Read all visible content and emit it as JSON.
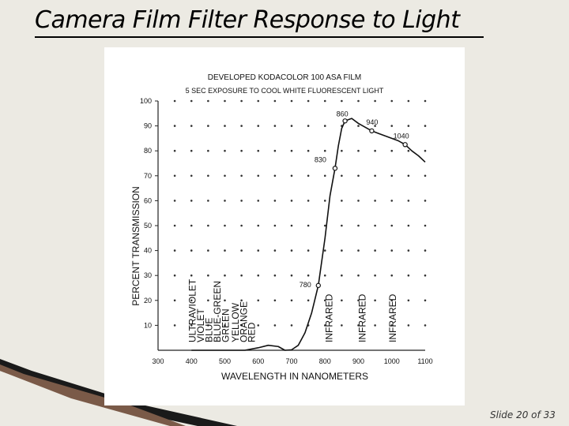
{
  "slide": {
    "title": "Camera Film Filter Response to Light",
    "footer": "Slide 20 of 33"
  },
  "chart_data": {
    "type": "line",
    "title": "DEVELOPED KODACOLOR 100 ASA FILM",
    "subtitle": "5 SEC EXPOSURE TO COOL WHITE FLUORESCENT LIGHT",
    "xlabel": "WAVELENGTH IN NANOMETERS",
    "ylabel": "PERCENT TRANSMISSION",
    "xlim": [
      300,
      1100
    ],
    "ylim": [
      0,
      100
    ],
    "x_ticks": [
      300,
      400,
      500,
      600,
      700,
      800,
      900,
      1000,
      1100
    ],
    "y_ticks": [
      10,
      20,
      30,
      40,
      50,
      60,
      70,
      80,
      90,
      100
    ],
    "grid": "dotted",
    "series": [
      {
        "x": [
          400,
          500,
          560,
          600,
          630,
          660,
          680,
          700,
          720,
          740,
          760,
          780,
          800,
          815,
          830,
          840,
          850,
          860,
          880,
          900,
          920,
          940,
          960,
          980,
          1000,
          1020,
          1040,
          1060,
          1080,
          1100
        ],
        "y": [
          0,
          0,
          0,
          1,
          2,
          1.5,
          0,
          0.2,
          2,
          7,
          15,
          26,
          45,
          62,
          73,
          82,
          89,
          92,
          93,
          91,
          89.5,
          88,
          87,
          86,
          85,
          84,
          82.5,
          80,
          78,
          75.5
        ]
      }
    ],
    "annotations": [
      {
        "x": 780,
        "y": 26,
        "text": "780"
      },
      {
        "x": 830,
        "y": 73,
        "text": "830"
      },
      {
        "x": 860,
        "y": 92,
        "text": "860"
      },
      {
        "x": 940,
        "y": 88,
        "text": "940"
      },
      {
        "x": 1040,
        "y": 82.5,
        "text": "1040"
      }
    ],
    "band_labels": [
      {
        "text": "ULTRAVIOLET",
        "x": 400
      },
      {
        "text": "VIOLET",
        "x": 425
      },
      {
        "text": "BLUE",
        "x": 450
      },
      {
        "text": "BLUE-GREEN",
        "x": 475
      },
      {
        "text": "GREEN",
        "x": 500
      },
      {
        "text": "YELLOW",
        "x": 530
      },
      {
        "text": "ORANGE",
        "x": 555
      },
      {
        "text": "RED",
        "x": 578
      },
      {
        "text": "INFRARED",
        "x": 810
      },
      {
        "text": "INFRARED",
        "x": 910
      },
      {
        "text": "INFRARED",
        "x": 1000
      }
    ]
  }
}
